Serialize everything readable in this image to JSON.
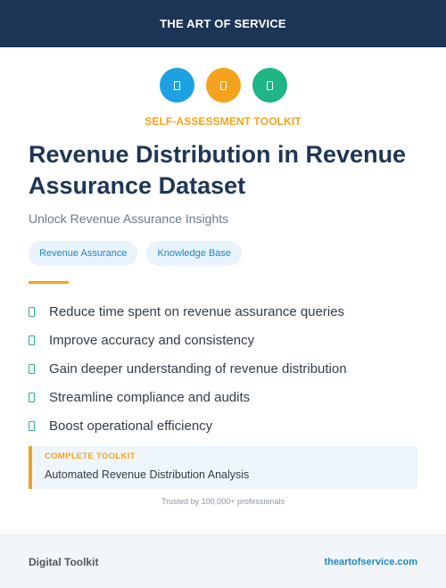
{
  "header": {
    "title": "THE ART OF SERVICE"
  },
  "icons": [
    {
      "name": "document-icon",
      "color": "#1da1e2"
    },
    {
      "name": "document-icon",
      "color": "#f4a21d"
    },
    {
      "name": "document-icon",
      "color": "#1fb585"
    }
  ],
  "eyebrow": "SELF-ASSESSMENT TOOLKIT",
  "title": "Revenue Distribution in Revenue Assurance Dataset",
  "subtitle": "Unlock Revenue Assurance Insights",
  "tags": [
    "Revenue Assurance",
    "Knowledge Base"
  ],
  "benefits": [
    "Reduce time spent on revenue assurance queries",
    "Improve accuracy and consistency",
    "Gain deeper understanding of revenue distribution",
    "Streamline compliance and audits",
    "Boost operational efficiency"
  ],
  "callout": {
    "label": "COMPLETE TOOLKIT",
    "text": "Automated Revenue Distribution Analysis"
  },
  "trusted": "Trusted by 100,000+ professionals",
  "footer": {
    "left": "Digital Toolkit",
    "right": "theartofservice.com"
  },
  "colors": {
    "accent": "#f5a21b",
    "navy": "#1c3557",
    "link": "#1d88c6",
    "check": "#27b57e"
  }
}
